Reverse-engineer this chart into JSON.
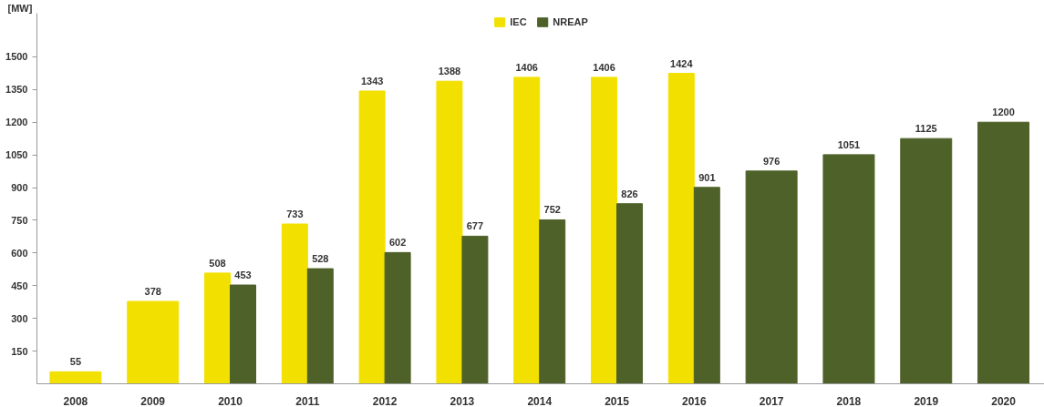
{
  "chart_data": {
    "type": "bar",
    "ylabel": "[MW]",
    "categories": [
      "2008",
      "2009",
      "2010",
      "2011",
      "2012",
      "2013",
      "2014",
      "2015",
      "2016",
      "2017",
      "2018",
      "2019",
      "2020"
    ],
    "series": [
      {
        "name": "IEC",
        "color": "#f2e000",
        "values": [
          55,
          378,
          508,
          733,
          1343,
          1388,
          1406,
          1406,
          1424,
          null,
          null,
          null,
          null
        ]
      },
      {
        "name": "NREAP",
        "color": "#4e6129",
        "values": [
          null,
          null,
          453,
          528,
          602,
          677,
          752,
          826,
          901,
          976,
          1051,
          1125,
          1200
        ]
      }
    ],
    "ylim": [
      0,
      1700
    ],
    "yticks": [
      150,
      300,
      450,
      600,
      750,
      900,
      1050,
      1200,
      1350,
      1500
    ],
    "data_labels": true,
    "legend": "top"
  }
}
